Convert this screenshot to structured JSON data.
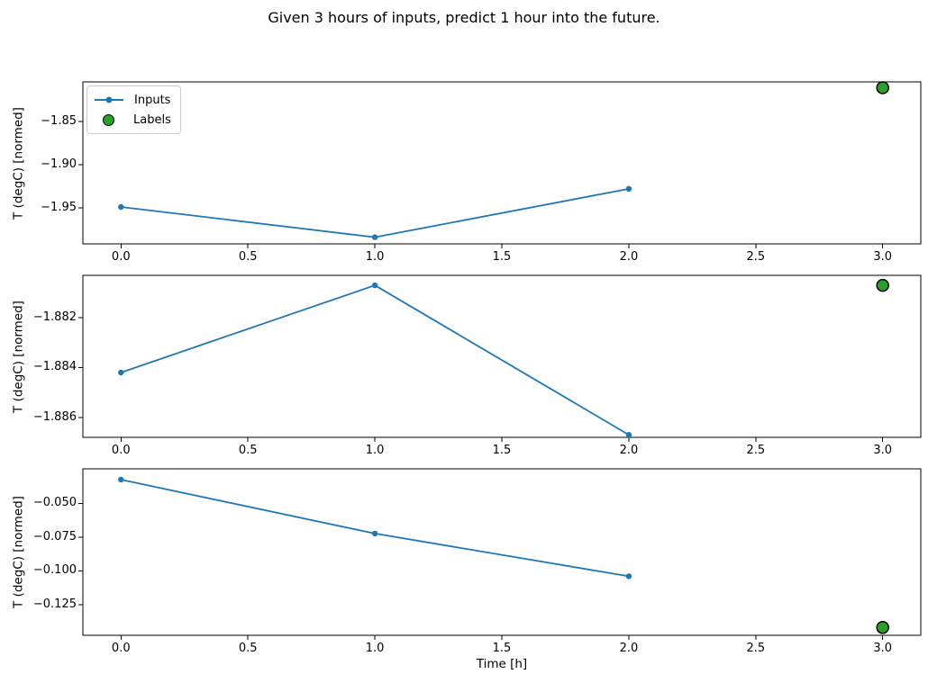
{
  "title": "Given 3 hours of inputs, predict 1 hour into the future.",
  "xlabel": "Time [h]",
  "colors": {
    "inputs": "#1f77b4",
    "labels": "#2ca02c",
    "marker_edge": "#000000",
    "axes": "#000000",
    "background": "#ffffff",
    "legend_border": "#cccccc"
  },
  "legend": {
    "position": "upper-left-of-first-subplot",
    "items": [
      {
        "label": "Inputs",
        "marker": "line-with-dot",
        "color": "#1f77b4"
      },
      {
        "label": "Labels",
        "marker": "filled-circle",
        "color": "#2ca02c"
      }
    ]
  },
  "chart_data": [
    {
      "type": "line",
      "name": "subplot-1",
      "ylabel": "T (degC) [normed]",
      "x": [
        0,
        1,
        2
      ],
      "series": [
        {
          "name": "Inputs",
          "values": [
            -1.949,
            -1.984,
            -1.928
          ]
        }
      ],
      "labels_series": {
        "name": "Labels",
        "x": [
          3
        ],
        "values": [
          -1.811
        ]
      },
      "xlim": [
        -0.15,
        3.15
      ],
      "ylim": [
        -1.9917,
        -1.8042
      ],
      "xtick_values": [
        0,
        0.5,
        1,
        1.5,
        2,
        2.5,
        3
      ],
      "xtick_labels": [
        "0.0",
        "0.5",
        "1.0",
        "1.5",
        "2.0",
        "2.5",
        "3.0"
      ],
      "ytick_values": [
        -1.85,
        -1.9,
        -1.95
      ],
      "ytick_labels": [
        "−1.85",
        "−1.90",
        "−1.95"
      ],
      "grid": false,
      "legend_visible": true
    },
    {
      "type": "line",
      "name": "subplot-2",
      "ylabel": "T (degC) [normed]",
      "x": [
        0,
        1,
        2
      ],
      "series": [
        {
          "name": "Inputs",
          "values": [
            -1.8842,
            -1.8807,
            -1.8867
          ]
        }
      ],
      "labels_series": {
        "name": "Labels",
        "x": [
          3
        ],
        "values": [
          -1.8807
        ]
      },
      "xlim": [
        -0.15,
        3.15
      ],
      "ylim": [
        -1.8868,
        -1.8803
      ],
      "xtick_values": [
        0,
        0.5,
        1,
        1.5,
        2,
        2.5,
        3
      ],
      "xtick_labels": [
        "0.0",
        "0.5",
        "1.0",
        "1.5",
        "2.0",
        "2.5",
        "3.0"
      ],
      "ytick_values": [
        -1.882,
        -1.884,
        -1.886
      ],
      "ytick_labels": [
        "−1.882",
        "−1.884",
        "−1.886"
      ],
      "grid": false,
      "legend_visible": false
    },
    {
      "type": "line",
      "name": "subplot-3",
      "ylabel": "T (degC) [normed]",
      "x": [
        0,
        1,
        2
      ],
      "series": [
        {
          "name": "Inputs",
          "values": [
            -0.0323,
            -0.0723,
            -0.104
          ]
        }
      ],
      "labels_series": {
        "name": "Labels",
        "x": [
          3
        ],
        "values": [
          -0.142
        ]
      },
      "xlim": [
        -0.15,
        3.15
      ],
      "ylim": [
        -0.1478,
        -0.0243
      ],
      "xtick_values": [
        0,
        0.5,
        1,
        1.5,
        2,
        2.5,
        3
      ],
      "xtick_labels": [
        "0.0",
        "0.5",
        "1.0",
        "1.5",
        "2.0",
        "2.5",
        "3.0"
      ],
      "ytick_values": [
        -0.05,
        -0.075,
        -0.1,
        -0.125
      ],
      "ytick_labels": [
        "−0.050",
        "−0.075",
        "−0.100",
        "−0.125"
      ],
      "grid": false,
      "legend_visible": false
    }
  ]
}
